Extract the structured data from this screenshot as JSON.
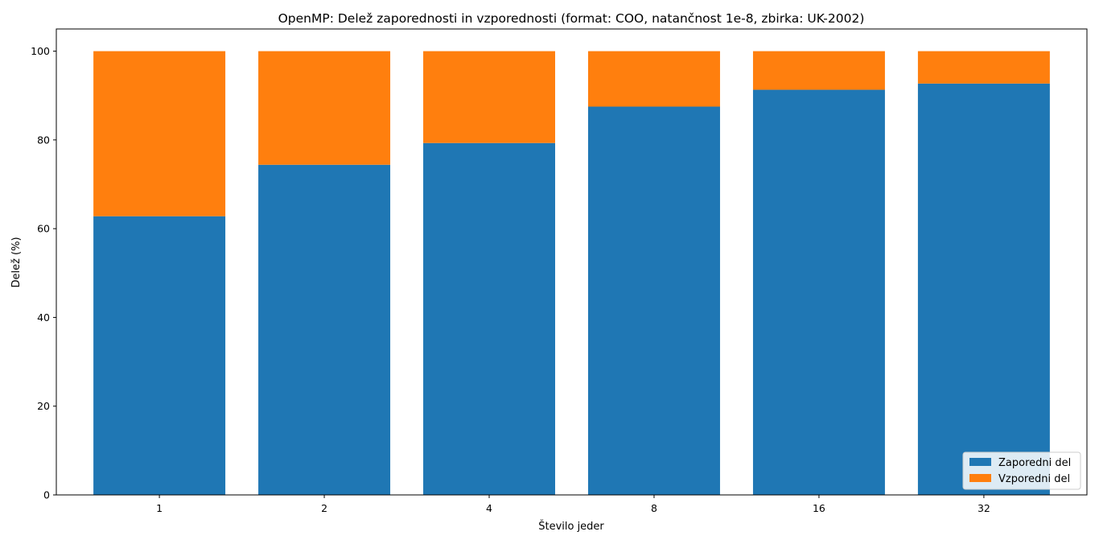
{
  "chart_data": {
    "type": "bar",
    "stacked": true,
    "title": "OpenMP: Delež zaporednosti in vzporednosti (format: COO, natančnost 1e-8, zbirka: UK-2002)",
    "xlabel": "Število jeder",
    "ylabel": "Delež (%)",
    "categories": [
      "1",
      "2",
      "4",
      "8",
      "16",
      "32"
    ],
    "ylim": [
      0,
      105
    ],
    "yticks": [
      0,
      20,
      40,
      60,
      80,
      100
    ],
    "series": [
      {
        "name": "Zaporedni del",
        "color": "#1f77b4",
        "values": [
          62.8,
          74.4,
          79.3,
          87.5,
          91.3,
          92.7
        ]
      },
      {
        "name": "Vzporedni del",
        "color": "#ff7f0e",
        "values": [
          37.2,
          25.6,
          20.7,
          12.5,
          8.7,
          7.3
        ]
      }
    ],
    "grid": false,
    "legend_position": "bottom-right"
  }
}
